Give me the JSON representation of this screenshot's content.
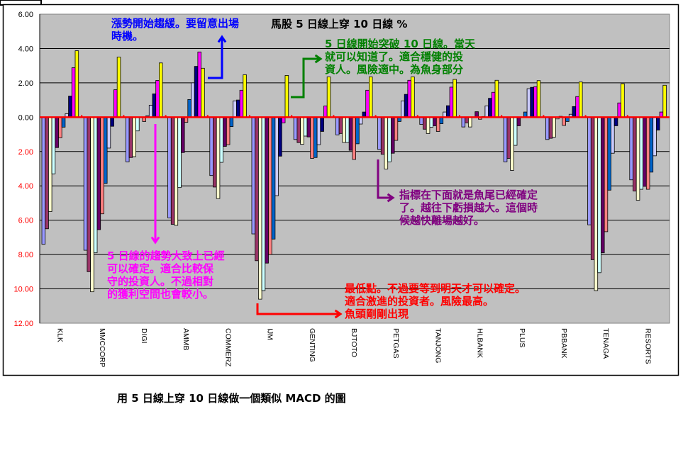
{
  "chart_data": {
    "type": "bar",
    "title": "馬股 5 日線上穿 10 日線 %",
    "xlabel": "",
    "ylabel": "",
    "ylim": [
      -12,
      6
    ],
    "yticks": [
      6,
      4,
      2,
      0,
      -2,
      -4,
      -6,
      -8,
      -10,
      -12
    ],
    "ytick_labels": [
      "6.00",
      "4.00",
      "2.00",
      "0.00",
      "2.00",
      "4.00",
      "6.00",
      "8.00",
      "10.00",
      "12.00"
    ],
    "grid": true,
    "legend": "none",
    "categories": [
      "KLK",
      "MMCCORP",
      "DIGI",
      "AMMB",
      "COMMERZ",
      "IJM",
      "GENTING",
      "BJTOTO",
      "PETGAS",
      "TANJONG",
      "HLBANK",
      "PLUS",
      "PBBANK",
      "TENAGA",
      "RESORTS"
    ],
    "series_colors": [
      "#9999FF",
      "#993366",
      "#FFFFCC",
      "#CCFFFF",
      "#660066",
      "#FF8080",
      "#0066CC",
      "#CCCCFF",
      "#000080",
      "#FF00FF",
      "#FFFF00"
    ],
    "values_by_category": [
      [
        -7.4,
        -6.5,
        -5.5,
        -3.3,
        -1.77,
        -1.2,
        -0.58,
        0.2,
        1.23,
        2.88,
        3.87
      ],
      [
        -7.75,
        -9.0,
        -10.17,
        -7.9,
        -6.55,
        -5.63,
        -3.86,
        -1.8,
        -0.53,
        1.6,
        3.5
      ],
      [
        -2.6,
        -2.35,
        -2.3,
        -0.8,
        -0.02,
        -0.25,
        0.08,
        0.7,
        1.36,
        2.14,
        3.16
      ],
      [
        -5.87,
        -6.24,
        -6.3,
        -4.1,
        -2.06,
        -0.3,
        1.03,
        2.0,
        2.96,
        3.8,
        2.85
      ],
      [
        -3.4,
        -4.07,
        -4.74,
        -2.63,
        -1.7,
        -1.6,
        -0.55,
        0.95,
        1.0,
        1.57,
        2.47
      ],
      [
        -6.8,
        -8.36,
        -10.6,
        -10.1,
        -8.5,
        -8.0,
        -7.1,
        -4.57,
        -2.27,
        -0.33,
        2.43
      ],
      [
        -1.3,
        -1.48,
        -1.58,
        -1.1,
        -1.15,
        -2.4,
        -2.35,
        -1.6,
        -0.83,
        0.65,
        2.35
      ],
      [
        -1.03,
        -0.95,
        -1.47,
        -1.47,
        -1.93,
        -2.46,
        -1.55,
        -0.4,
        0.3,
        1.57,
        2.35
      ],
      [
        -1.88,
        -2.16,
        -3.02,
        -2.6,
        -2.1,
        -1.35,
        -0.25,
        0.95,
        1.33,
        2.15,
        2.35
      ],
      [
        -0.42,
        -0.7,
        -0.95,
        -0.58,
        -0.5,
        -0.83,
        -0.38,
        0.3,
        0.67,
        1.75,
        2.2
      ],
      [
        -0.57,
        -0.33,
        -0.57,
        0.02,
        0.32,
        -0.12,
        0.04,
        0.66,
        1.1,
        1.45,
        2.15
      ],
      [
        -2.6,
        -2.4,
        -3.1,
        -1.64,
        -0.5,
        0.0,
        0.3,
        1.66,
        1.74,
        1.77,
        2.13
      ],
      [
        -1.3,
        -1.23,
        -1.16,
        -0.1,
        0.05,
        -0.48,
        -0.25,
        0.17,
        0.62,
        1.2,
        2.05
      ],
      [
        -6.27,
        -8.3,
        -10.1,
        -9.06,
        -7.9,
        -6.67,
        -4.25,
        -2.1,
        -0.5,
        0.83,
        1.95
      ],
      [
        -3.65,
        -4.3,
        -4.84,
        -4.2,
        -4.03,
        -4.2,
        -3.2,
        -2.25,
        -0.75,
        0.3,
        1.86
      ]
    ],
    "annotations": {
      "blue": {
        "text": "漲勢開始趨緩。要留意出場\n時機。",
        "color": "#0000FF"
      },
      "green": {
        "text": "5 日線開始突破 10 日線。當天\n就可以知道了。適合穩健的投\n資人。風險適中。為魚身部分",
        "color": "#008000"
      },
      "purple": {
        "text": "指標在下面就是魚尾已經確定\n了。越往下虧損越大。這個時\n候越快離場越好。",
        "color": "#800080"
      },
      "magenta": {
        "text": "5 日線的趨勢大致上已經\n可以確定。適合比較保\n守的投資人。不過相對\n的獲利空間也會較小。",
        "color": "#FF00FF"
      },
      "red": {
        "text": "最低點。不過要等到明天才可以確定。\n適合激進的投資者。風險最高。",
        "color": "#FF0000"
      },
      "red2": {
        "text": "魚頭剛剛出現",
        "color": "#FF0000"
      }
    }
  },
  "caption": "用 5  日線上穿 10 日線做一個類似 MACD 的圖"
}
